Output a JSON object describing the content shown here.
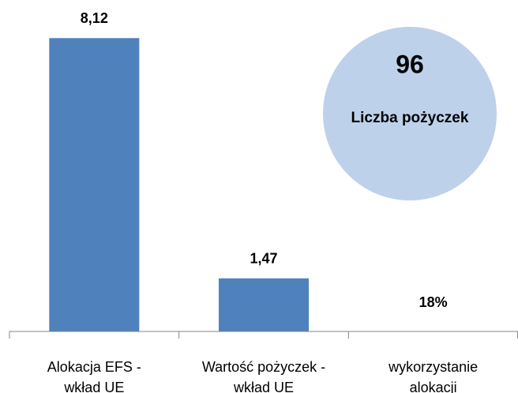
{
  "chart_data": {
    "type": "bar",
    "categories": [
      "Alokacja EFS -\nwkład UE",
      "Wartość pożyczek -\nwkład UE",
      "wykorzystanie\nalokacji"
    ],
    "values": [
      8.12,
      1.47,
      null
    ],
    "value_labels": [
      "8,12",
      "1,47",
      null
    ],
    "color": "#4f81bd",
    "ylim": [
      0,
      9
    ],
    "annotations": [
      {
        "text": "18%",
        "category": 2
      }
    ],
    "callout": {
      "value": 96,
      "label": "Liczba pożyczek",
      "color": "#bdd1ea"
    }
  }
}
